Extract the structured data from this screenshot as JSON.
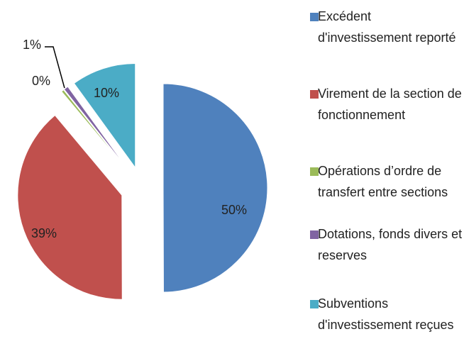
{
  "chart_data": {
    "type": "pie",
    "categories": [
      "Excédent d'investissement reporté",
      "Virement de la section de fonctionnement",
      "Opérations d’ordre de transfert entre sections",
      "Dotations, fonds divers et reserves",
      "Subventions d'investissement reçues"
    ],
    "values": [
      50,
      39,
      0.4,
      0.7,
      10
    ],
    "value_labels": [
      "50%",
      "39%",
      "0%",
      "1%",
      "10%"
    ],
    "colors": [
      "#4f81bd",
      "#c0504d",
      "#9bbb59",
      "#8064a2",
      "#4bacc6"
    ],
    "exploded": true,
    "legend": "right"
  }
}
